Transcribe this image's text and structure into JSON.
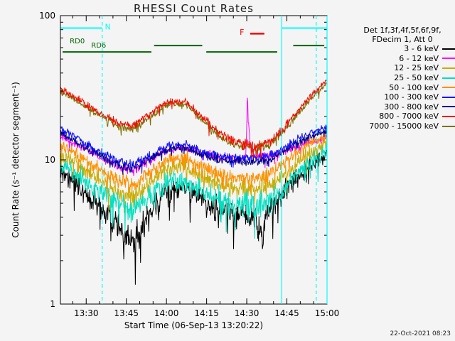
{
  "colors": {
    "background": "#f4f4f4",
    "axis": "#000000"
  },
  "chart_data": {
    "type": "line",
    "title": "RHESSI Count Rates",
    "xlabel": "Start Time (06-Sep-13 13:20:22)",
    "ylabel": "Count Rate (s⁻¹ detector segment⁻¹)",
    "timestamp": "22-Oct-2021 08:23",
    "y_scale": "log",
    "ylim": [
      1,
      100
    ],
    "y_major_ticks": [
      1,
      10,
      100
    ],
    "x_axis": {
      "start_label": "13:20:22",
      "duration_minutes": 99.63,
      "major_ticks": [
        {
          "t": 9.63,
          "label": "13:30"
        },
        {
          "t": 24.63,
          "label": "13:45"
        },
        {
          "t": 39.63,
          "label": "14:00"
        },
        {
          "t": 54.63,
          "label": "14:15"
        },
        {
          "t": 69.63,
          "label": "14:30"
        },
        {
          "t": 84.63,
          "label": "14:45"
        },
        {
          "t": 99.63,
          "label": "15:00"
        }
      ],
      "minor_step_minutes": 5
    },
    "legend": {
      "header_line1": "Det 1f,3f,4f,5f,6f,9f,",
      "header_line2": "FDecim 1, Att 0"
    },
    "draw_order": [
      8,
      0,
      1,
      2,
      3,
      4,
      5,
      6,
      7
    ],
    "series": [
      {
        "name": "3 - 6 keV",
        "color": "#000000",
        "noise": 0.055,
        "points": [
          [
            0,
            8.5
          ],
          [
            6,
            6.8
          ],
          [
            14,
            4.8
          ],
          [
            22,
            3.3
          ],
          [
            27,
            2.6
          ],
          [
            34,
            4.4
          ],
          [
            40,
            6.2
          ],
          [
            47,
            6.5
          ],
          [
            54,
            5.1
          ],
          [
            61,
            4.5
          ],
          [
            67,
            4.2
          ],
          [
            73,
            4.1
          ],
          [
            74.5,
            3.1
          ],
          [
            75.5,
            2.9
          ],
          [
            76.5,
            3.9
          ],
          [
            78,
            4.4
          ],
          [
            83,
            5.9
          ],
          [
            88,
            7.4
          ],
          [
            93,
            9.0
          ],
          [
            99.63,
            11.0
          ]
        ]
      },
      {
        "name": "6 - 12 keV",
        "color": "#ff00ff",
        "noise": 0.028,
        "points": [
          [
            0,
            14.5
          ],
          [
            6,
            12.8
          ],
          [
            14,
            10.6
          ],
          [
            22,
            8.9
          ],
          [
            27,
            8.4
          ],
          [
            34,
            10.0
          ],
          [
            40,
            11.8
          ],
          [
            47,
            12.0
          ],
          [
            54,
            10.9
          ],
          [
            61,
            10.3
          ],
          [
            67,
            10.2
          ],
          [
            69.2,
            10.4
          ],
          [
            69.6,
            16
          ],
          [
            69.9,
            29
          ],
          [
            70.3,
            18
          ],
          [
            71,
            13
          ],
          [
            72,
            11
          ],
          [
            73,
            10.6
          ],
          [
            78,
            10.7
          ],
          [
            83,
            11.3
          ],
          [
            88,
            12.1
          ],
          [
            93,
            13.0
          ],
          [
            99.63,
            14.3
          ]
        ]
      },
      {
        "name": "12 - 25 keV",
        "color": "#c9ad00",
        "noise": 0.05,
        "points": [
          [
            0,
            11.0
          ],
          [
            6,
            9.4
          ],
          [
            14,
            7.4
          ],
          [
            22,
            5.9
          ],
          [
            27,
            5.5
          ],
          [
            34,
            7.1
          ],
          [
            40,
            8.8
          ],
          [
            47,
            9.0
          ],
          [
            54,
            7.4
          ],
          [
            61,
            6.6
          ],
          [
            67,
            6.3
          ],
          [
            73,
            6.2
          ],
          [
            78,
            6.5
          ],
          [
            83,
            7.8
          ],
          [
            88,
            9.4
          ],
          [
            93,
            11.0
          ],
          [
            99.63,
            13.0
          ]
        ]
      },
      {
        "name": "25 - 50 keV",
        "color": "#00dfc0",
        "noise": 0.055,
        "points": [
          [
            0,
            9.2
          ],
          [
            6,
            7.8
          ],
          [
            14,
            6.1
          ],
          [
            22,
            4.9
          ],
          [
            27,
            4.5
          ],
          [
            34,
            5.8
          ],
          [
            40,
            7.1
          ],
          [
            47,
            7.3
          ],
          [
            54,
            5.9
          ],
          [
            61,
            5.2
          ],
          [
            67,
            5.0
          ],
          [
            73,
            4.9
          ],
          [
            78,
            5.2
          ],
          [
            83,
            6.4
          ],
          [
            88,
            7.9
          ],
          [
            93,
            9.5
          ],
          [
            99.63,
            11.5
          ]
        ]
      },
      {
        "name": "50 - 100 keV",
        "color": "#ff9000",
        "noise": 0.042,
        "points": [
          [
            0,
            12.8
          ],
          [
            6,
            11.0
          ],
          [
            14,
            8.8
          ],
          [
            22,
            7.1
          ],
          [
            27,
            6.6
          ],
          [
            34,
            8.3
          ],
          [
            40,
            10.1
          ],
          [
            47,
            10.3
          ],
          [
            54,
            8.7
          ],
          [
            61,
            7.8
          ],
          [
            67,
            7.6
          ],
          [
            73,
            7.5
          ],
          [
            78,
            7.8
          ],
          [
            83,
            9.3
          ],
          [
            88,
            11.1
          ],
          [
            93,
            13.0
          ],
          [
            99.63,
            15.0
          ]
        ]
      },
      {
        "name": "100 - 300 keV",
        "color": "#1414ff",
        "noise": 0.028,
        "points": [
          [
            0,
            16.5
          ],
          [
            6,
            14.2
          ],
          [
            14,
            11.6
          ],
          [
            22,
            9.7
          ],
          [
            27,
            9.2
          ],
          [
            34,
            10.9
          ],
          [
            40,
            12.6
          ],
          [
            47,
            12.8
          ],
          [
            54,
            11.3
          ],
          [
            61,
            10.5
          ],
          [
            67,
            10.3
          ],
          [
            73,
            10.2
          ],
          [
            78,
            10.6
          ],
          [
            83,
            12.0
          ],
          [
            88,
            13.6
          ],
          [
            93,
            15.2
          ],
          [
            99.63,
            17.0
          ]
        ]
      },
      {
        "name": "300 - 800 keV",
        "color": "#00008b",
        "noise": 0.026,
        "points": [
          [
            0,
            15.3
          ],
          [
            6,
            13.3
          ],
          [
            14,
            10.9
          ],
          [
            22,
            9.1
          ],
          [
            27,
            8.7
          ],
          [
            34,
            10.2
          ],
          [
            40,
            11.9
          ],
          [
            47,
            12.1
          ],
          [
            54,
            10.7
          ],
          [
            61,
            9.9
          ],
          [
            67,
            9.7
          ],
          [
            73,
            9.6
          ],
          [
            78,
            10.0
          ],
          [
            83,
            11.3
          ],
          [
            88,
            12.8
          ],
          [
            93,
            14.3
          ],
          [
            99.63,
            16.0
          ]
        ]
      },
      {
        "name": "800 - 7000 keV",
        "color": "#ee1100",
        "noise": 0.035,
        "points": [
          [
            0,
            31
          ],
          [
            6,
            27
          ],
          [
            14,
            21.5
          ],
          [
            22,
            17.8
          ],
          [
            27,
            17.2
          ],
          [
            34,
            21
          ],
          [
            40,
            25.5
          ],
          [
            47,
            25.3
          ],
          [
            54,
            19
          ],
          [
            61,
            14.5
          ],
          [
            67,
            13
          ],
          [
            73,
            12.5
          ],
          [
            78,
            13.2
          ],
          [
            83,
            16
          ],
          [
            88,
            21
          ],
          [
            93,
            27
          ],
          [
            99.63,
            36
          ]
        ]
      },
      {
        "name": "7000 - 15000 keV",
        "color": "#7d6f00",
        "noise": 0.03,
        "points": [
          [
            0,
            29.5
          ],
          [
            6,
            25.7
          ],
          [
            14,
            20.5
          ],
          [
            22,
            17
          ],
          [
            27,
            16.4
          ],
          [
            34,
            20
          ],
          [
            40,
            24.3
          ],
          [
            47,
            24.1
          ],
          [
            54,
            18.2
          ],
          [
            61,
            13.9
          ],
          [
            67,
            12.5
          ],
          [
            73,
            12.0
          ],
          [
            78,
            12.7
          ],
          [
            83,
            15.3
          ],
          [
            88,
            20
          ],
          [
            93,
            25.7
          ],
          [
            99.63,
            34.2
          ]
        ]
      }
    ],
    "flags": {
      "night": {
        "label": "N",
        "color": "#00ffff",
        "level": 82,
        "label_t": 16.6,
        "label_level": 84,
        "spans": [
          [
            0,
            15.6
          ],
          [
            82.7,
            99.63
          ]
        ]
      },
      "flare": {
        "label": "F",
        "color": "#ff0000",
        "level": 75,
        "label_t": 67.0,
        "label_level": 77,
        "spans": [
          [
            70.9,
            76.2
          ]
        ]
      },
      "decimation": {
        "color": "#006400",
        "levels": {
          "RD0": 62,
          "RD6": 56
        },
        "labels": [
          {
            "text": "RD0",
            "t": 3.5,
            "level": 66.5
          },
          {
            "text": "RD6",
            "t": 11.5,
            "level": 62
          }
        ],
        "segments": [
          {
            "t0": 0.8,
            "t1": 34,
            "level": "RD6"
          },
          {
            "t0": 35,
            "t1": 53,
            "level": "RD0"
          },
          {
            "t0": 54.5,
            "t1": 81,
            "level": "RD6"
          },
          {
            "t0": 87,
            "t1": 98.6,
            "level": "RD0"
          }
        ]
      }
    },
    "vlines": {
      "color": "#00ffff",
      "items": [
        {
          "t": 15.6,
          "style": "dashed"
        },
        {
          "t": 82.7,
          "style": "solid"
        },
        {
          "t": 95.6,
          "style": "dashed"
        },
        {
          "t": 99.63,
          "style": "solid"
        }
      ]
    }
  }
}
